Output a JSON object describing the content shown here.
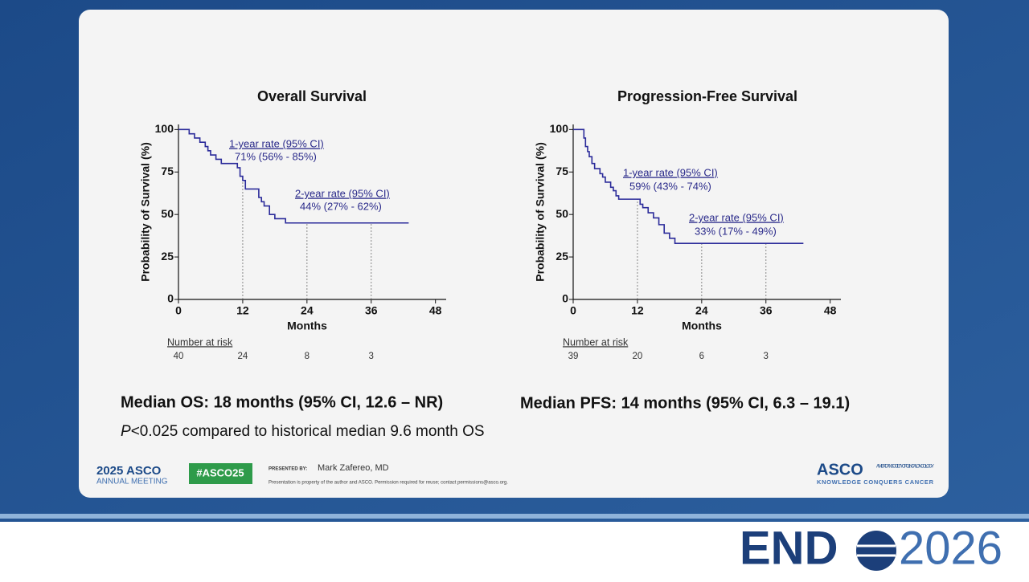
{
  "chart_data": [
    {
      "type": "step",
      "title": "Overall Survival",
      "x_label": "Months",
      "y_label": "Probability of Survival (%)",
      "color": "#2b2b9a",
      "xlim": [
        0,
        50
      ],
      "ylim": [
        0,
        103
      ],
      "xticks": [
        0,
        12,
        24,
        36,
        48
      ],
      "yticks": [
        0,
        25,
        50,
        75,
        100
      ],
      "x": [
        0,
        2,
        3,
        4,
        5,
        5.5,
        6,
        7,
        8,
        11,
        11.5,
        12,
        12.5,
        15,
        15.5,
        16,
        17,
        18,
        20,
        43
      ],
      "values": [
        100,
        97.5,
        95,
        92.5,
        90,
        87.5,
        85,
        82.5,
        80,
        77.5,
        72.5,
        70,
        65,
        60,
        57.5,
        55,
        50,
        47.5,
        45,
        45
      ],
      "reference_x": [
        12,
        24,
        36
      ],
      "annotations": [
        {
          "text": "1-year rate (95% CI)",
          "detail": "71% (56% - 85%)"
        },
        {
          "text": "2-year rate (95% CI)",
          "detail": "44% (27% - 62%)"
        }
      ],
      "risk": {
        "label": "Number at risk",
        "values": [
          40,
          24,
          8,
          3
        ]
      }
    },
    {
      "type": "step",
      "title": "Progression-Free Survival",
      "x_label": "Months",
      "y_label": "Probability of Survival (%)",
      "color": "#2b2b9a",
      "xlim": [
        0,
        50
      ],
      "ylim": [
        0,
        103
      ],
      "xticks": [
        0,
        12,
        24,
        36,
        48
      ],
      "yticks": [
        0,
        25,
        50,
        75,
        100
      ],
      "x": [
        0,
        2,
        2.3,
        2.7,
        3,
        3.5,
        4,
        5,
        5.5,
        6,
        7,
        7.5,
        8,
        8.5,
        12,
        12.5,
        13,
        14,
        15,
        16,
        17,
        18,
        19,
        43
      ],
      "values": [
        100,
        95,
        90,
        87,
        84,
        80,
        77,
        74,
        72,
        69,
        66,
        64,
        61,
        59,
        59,
        56,
        54,
        51,
        48,
        44,
        39,
        36,
        33,
        33
      ],
      "reference_x": [
        12,
        24,
        36
      ],
      "annotations": [
        {
          "text": "1-year rate (95% CI)",
          "detail": "59% (43% - 74%)"
        },
        {
          "text": "2-year rate (95% CI)",
          "detail": "33% (17% - 49%)"
        }
      ],
      "risk": {
        "label": "Number at risk",
        "values": [
          39,
          20,
          6,
          3
        ]
      }
    }
  ],
  "slide": {
    "median_os": "Median OS: 18 months (95% CI, 12.6 – NR)",
    "median_pfs": "Median PFS: 14 months (95% CI, 6.3 – 19.1)",
    "p_italic": "P",
    "p_rest": "<0.025 compared to historical median 9.6 month OS"
  },
  "footer": {
    "meeting_year": "2025 ASCO",
    "meeting_name": "ANNUAL MEETING",
    "hashtag": "#ASCO25",
    "presented_by": "PRESENTED BY:",
    "presenter": "Mark Zafereo, MD",
    "notice": "Presentation is property of the author and ASCO. Permission required for reuse; contact permissions@asco.org.",
    "asco": "ASCO",
    "asco_full": "AMERICAN SOCIETY OF CLINICAL ONCOLOGY",
    "asco_tagline": "KNOWLEDGE CONQUERS CANCER"
  },
  "branding": {
    "end": "END",
    "year": "2026"
  }
}
